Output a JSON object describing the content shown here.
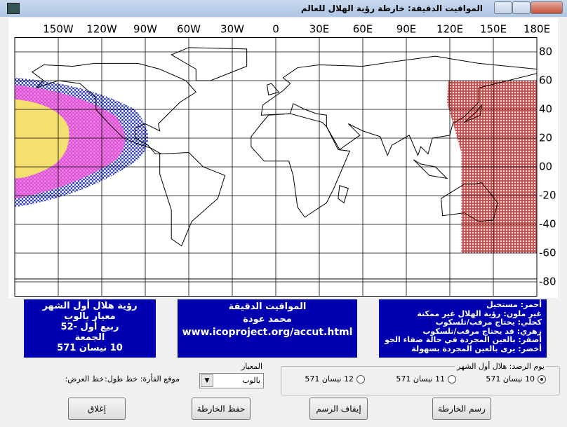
{
  "window": {
    "title": "المواقيت الدقيقة: خارطة رؤية الهلال للعالم"
  },
  "map": {
    "lon_labels": [
      "150W",
      "120W",
      "90W",
      "60W",
      "30W",
      "0",
      "30E",
      "60E",
      "90E",
      "120E",
      "150E",
      "180E"
    ],
    "lat_labels": [
      "80",
      "60",
      "40",
      "20",
      "00",
      "-20",
      "-40",
      "-60",
      "-80"
    ]
  },
  "info_left": [
    "رؤية هلال أول الشهر",
    "معيار يالوب",
    "ربيع أول -52",
    "الجمعة",
    "10 نيسان 571"
  ],
  "info_middle": [
    "المواقيت الدقيقة",
    "محمد عودة",
    "www.icoproject.org/accut.html"
  ],
  "legend": [
    "أحمر: مستحيل",
    "غير ملون: رؤية الهلال غير ممكنة",
    "كحلي: يحتاج مرقب/تلسكوب",
    "زهري: قد يحتاج مرقب/تلسكوب",
    "أصفر: بالعين المجردة في حالة صفاء الجو",
    "أخضر: يرى بالعين المجردة بسهولة"
  ],
  "observation": {
    "title": "يوم الرصد: هلال أول الشهر",
    "options": [
      "10 نيسان 571",
      "11 نيسان 571",
      "12 نيسان 571"
    ]
  },
  "criterion": {
    "label": "المعيار",
    "value": "يالوب"
  },
  "mouse": {
    "label": "موقع الفأرة:",
    "lon": "خط طول:",
    "lat": "خط العرض:"
  },
  "buttons": {
    "draw": "رسم الخارطة",
    "stop": "إيقاف الرسم",
    "save": "حفظ الخارطة",
    "close": "إغلاق"
  }
}
